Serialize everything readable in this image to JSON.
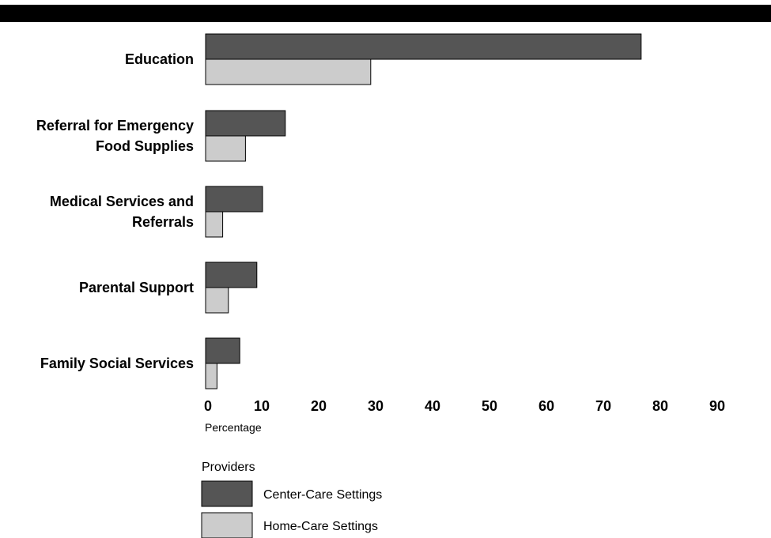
{
  "chart_data": {
    "type": "bar",
    "orientation": "horizontal",
    "title": "",
    "categories": [
      [
        "Education"
      ],
      [
        "Referral for Emergency",
        "Food Supplies"
      ],
      [
        "Medical Services and",
        "Referrals"
      ],
      [
        "Parental Support"
      ],
      [
        "Family Social Services"
      ]
    ],
    "series": [
      {
        "name": "Center-Care Settings",
        "color": "#555555",
        "values": [
          76.5,
          14,
          10,
          9,
          6
        ]
      },
      {
        "name": "Home-Care Settings",
        "color": "#cccccc",
        "values": [
          29,
          7,
          3,
          4,
          2
        ]
      }
    ],
    "xlabel": "Percentage",
    "xlim": [
      0,
      90
    ],
    "xticks": [
      0,
      10,
      20,
      30,
      40,
      50,
      60,
      70,
      80,
      90
    ],
    "grid": false,
    "legend": {
      "title": "Providers",
      "placement": "bottom-left"
    }
  }
}
